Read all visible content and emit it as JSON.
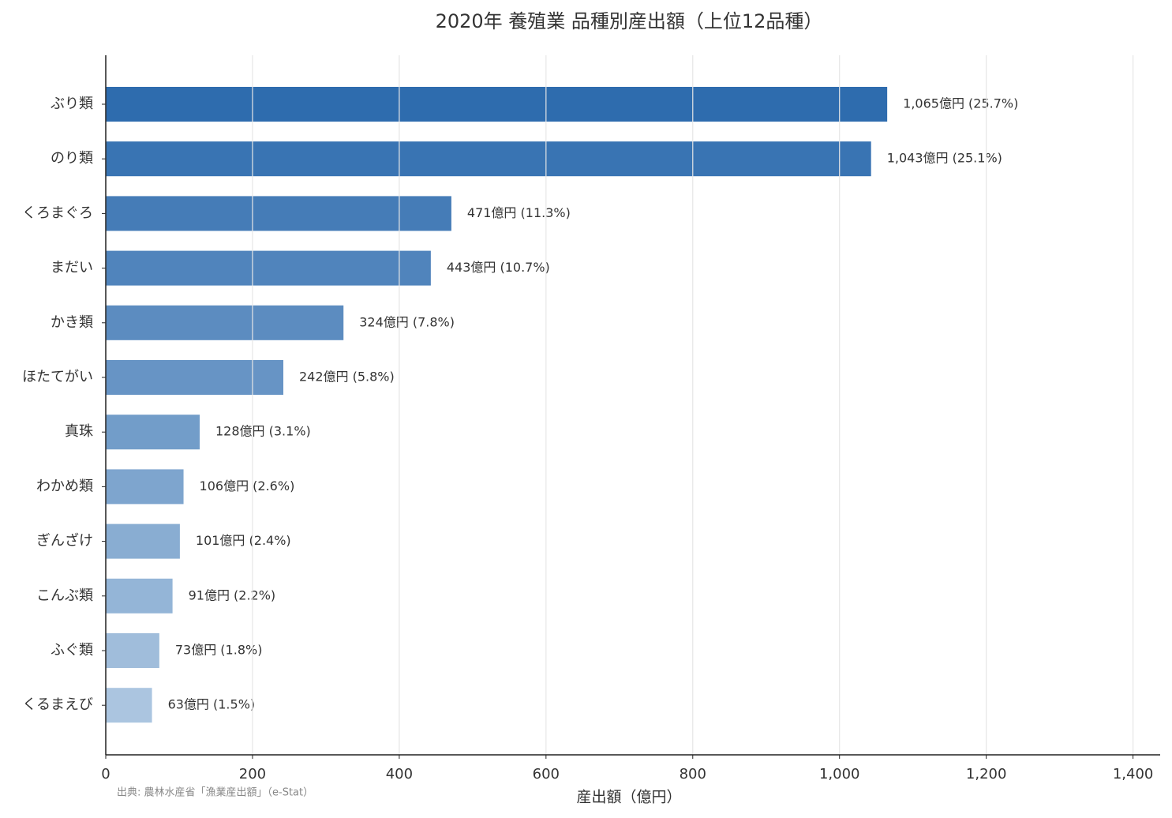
{
  "chart_data": {
    "type": "barh",
    "title": "2020年 養殖業 品種別産出額（上位12品種）",
    "xlabel": "産出額（億円）",
    "source": "出典: 農林水産省「漁業産出額」（e-Stat）",
    "categories": [
      "ぶり類",
      "のり類",
      "くろまぐろ",
      "まだい",
      "かき類",
      "ほたてがい",
      "真珠",
      "わかめ類",
      "ぎんざけ",
      "こんぶ類",
      "ふぐ類",
      "くるまえび"
    ],
    "values": [
      1065,
      1043,
      471,
      443,
      324,
      242,
      128,
      106,
      101,
      91,
      73,
      63
    ],
    "value_labels": [
      "1,065億円 (25.7%)",
      "1,043億円 (25.1%)",
      "471億円 (11.3%)",
      "443億円 (10.7%)",
      "324億円 (7.8%)",
      "242億円 (5.8%)",
      "128億円 (3.1%)",
      "106億円 (2.6%)",
      "101億円 (2.4%)",
      "91億円 (2.2%)",
      "73億円 (1.8%)",
      "63億円 (1.5%)"
    ],
    "colors": [
      "#2e6cae",
      "#3974b3",
      "#457cb7",
      "#5084bc",
      "#5c8cc0",
      "#6794c5",
      "#729dc9",
      "#7ea5ce",
      "#89add2",
      "#94b5d7",
      "#a0bddb",
      "#abc5e0"
    ],
    "xlim": [
      0,
      1437
    ],
    "xticks": [
      0,
      200,
      400,
      600,
      800,
      {
        "value": 1000,
        "label": "1,000"
      },
      {
        "value": 1200,
        "label": "1,200"
      },
      {
        "value": 1400,
        "label": "1,400"
      }
    ],
    "grid": true
  }
}
